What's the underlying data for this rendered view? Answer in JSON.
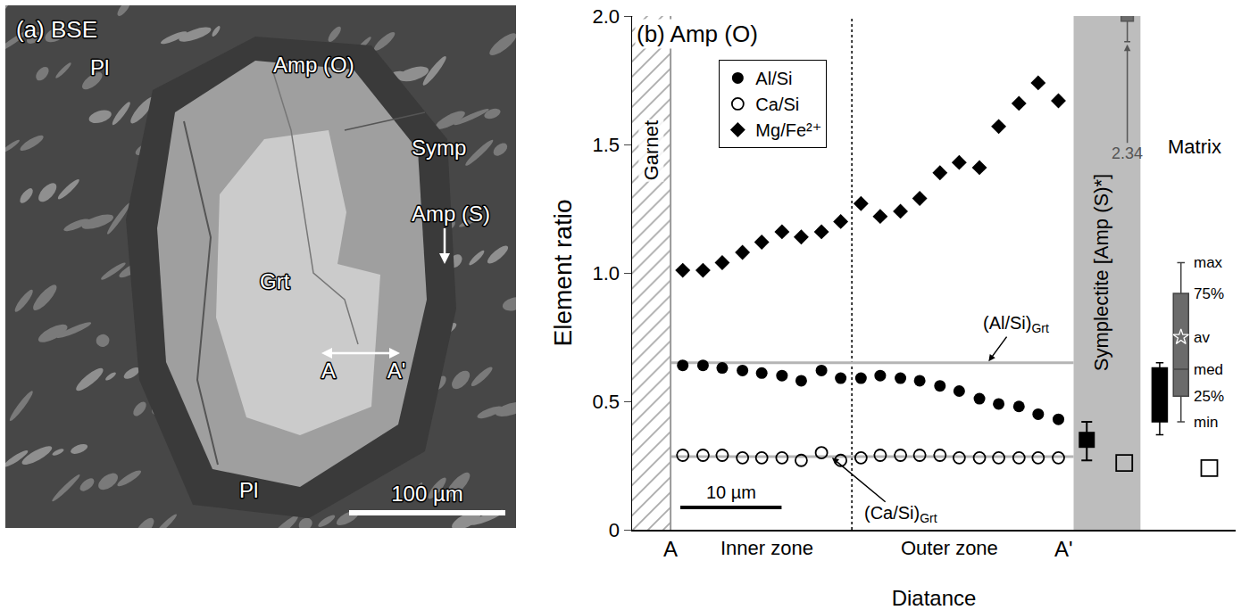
{
  "panel_a": {
    "label": "(a) BSE",
    "labels": [
      "Pl",
      "Amp (O)",
      "Symp",
      "Amp (S)",
      "Grt",
      "A",
      "A'",
      "Pl"
    ],
    "scale_bar": {
      "length": 100,
      "label": "100 µm"
    }
  },
  "chart_data": {
    "type": "scatter",
    "title": "(b) Amp (O)",
    "x_label": "Diatance",
    "y_label": "Element ratio",
    "xlim": [
      -3.8,
      55.8
    ],
    "ylim": [
      0,
      2
    ],
    "yticks": [
      0,
      0.5,
      {
        "value": 1,
        "label": "1.0"
      },
      1.5,
      {
        "value": 2,
        "label": "2.0"
      }
    ],
    "xticks": [
      {
        "value": 0,
        "label": "A"
      },
      {
        "value": 38.8,
        "label": "A'"
      }
    ],
    "zones": [
      {
        "label": "Inner zone",
        "x": 9.5
      },
      {
        "label": "Outer zone",
        "x": 27.5
      }
    ],
    "zone_boundary": 17.9,
    "legend": "top-left",
    "x": [
      1.2,
      3.2,
      5.1,
      7.1,
      9.0,
      11.0,
      12.9,
      14.9,
      16.8,
      18.8,
      20.7,
      22.7,
      24.6,
      26.6,
      28.5,
      30.5,
      32.4,
      34.4,
      36.3,
      38.3
    ],
    "series": [
      {
        "name": "Al/Si",
        "color": "#000000",
        "marker": "circle",
        "values": [
          0.64,
          0.64,
          0.63,
          0.62,
          0.61,
          0.6,
          0.58,
          0.62,
          0.59,
          0.59,
          0.6,
          0.59,
          0.58,
          0.56,
          0.54,
          0.51,
          0.49,
          0.48,
          0.45,
          0.43
        ]
      },
      {
        "name": "Ca/Si",
        "color": "#000000",
        "marker": "circle-open",
        "values": [
          0.29,
          0.29,
          0.29,
          0.28,
          0.28,
          0.28,
          0.27,
          0.3,
          0.27,
          0.28,
          0.29,
          0.29,
          0.29,
          0.29,
          0.28,
          0.28,
          0.28,
          0.28,
          0.28,
          0.28
        ]
      },
      {
        "name": "Mg/Fe²⁺",
        "color": "#000000",
        "marker": "diamond",
        "values": [
          1.01,
          1.01,
          1.04,
          1.08,
          1.12,
          1.16,
          1.14,
          1.16,
          1.2,
          1.27,
          1.22,
          1.24,
          1.29,
          1.39,
          1.43,
          1.41,
          1.57,
          1.66,
          1.74,
          1.67
        ]
      }
    ],
    "garnet": {
      "label": "Garnet",
      "x_end": 0
    },
    "garnet_ratios": [
      {
        "text": "(Al/Si)",
        "sub": "Grt",
        "value": 0.65,
        "label_x": 34.1,
        "label_y": 0.8,
        "arrow_x": 31.3
      },
      {
        "text": "(Ca/Si)",
        "sub": "Grt",
        "value": 0.285,
        "label_x": 22.7,
        "label_y": 0.06,
        "arrow_x": 15.8
      }
    ],
    "scale_bar": {
      "x": 0.96,
      "y": 0.087,
      "length": 10,
      "label": "10 µm"
    },
    "symplectite": {
      "label": "Symplectite [Amp (S)*]",
      "x_start": 39.8,
      "x_end": 46.4,
      "Al/Si": {
        "x": 41.1,
        "value": 0.35,
        "min": 0.27,
        "max": 0.42,
        "color": "#000000"
      },
      "Ca/Si": {
        "x": 44.8,
        "value": 0.26,
        "color": "#000000"
      },
      "Mg/Fe²⁺": {
        "x": 45.1,
        "min": 1.9,
        "q1": 1.98,
        "median": 2.34,
        "median_label": "2.34",
        "color": "#6b6b6b"
      }
    },
    "matrix": {
      "label": "Matrix",
      "label_x": 51.7,
      "label_y": 1.49,
      "Al/Si": {
        "x": 48.3,
        "min": 0.37,
        "q1": 0.42,
        "median": 0.63,
        "q3": 0.63,
        "max": 0.65,
        "color": "#000000"
      },
      "Ca/Si": {
        "x": 53.2,
        "value": 0.24,
        "color": "#000000"
      },
      "Mg/Fe²⁺": {
        "x": 50.4,
        "min": 0.42,
        "q1": 0.52,
        "median": 0.625,
        "q3": 0.92,
        "max": 1.04,
        "average": 0.75,
        "color": "#6b6b6b"
      },
      "stat_labels": {
        "max": "max",
        "q3": "75%",
        "average": "av",
        "median": "med",
        "q1": "25%",
        "min": "min"
      }
    }
  }
}
